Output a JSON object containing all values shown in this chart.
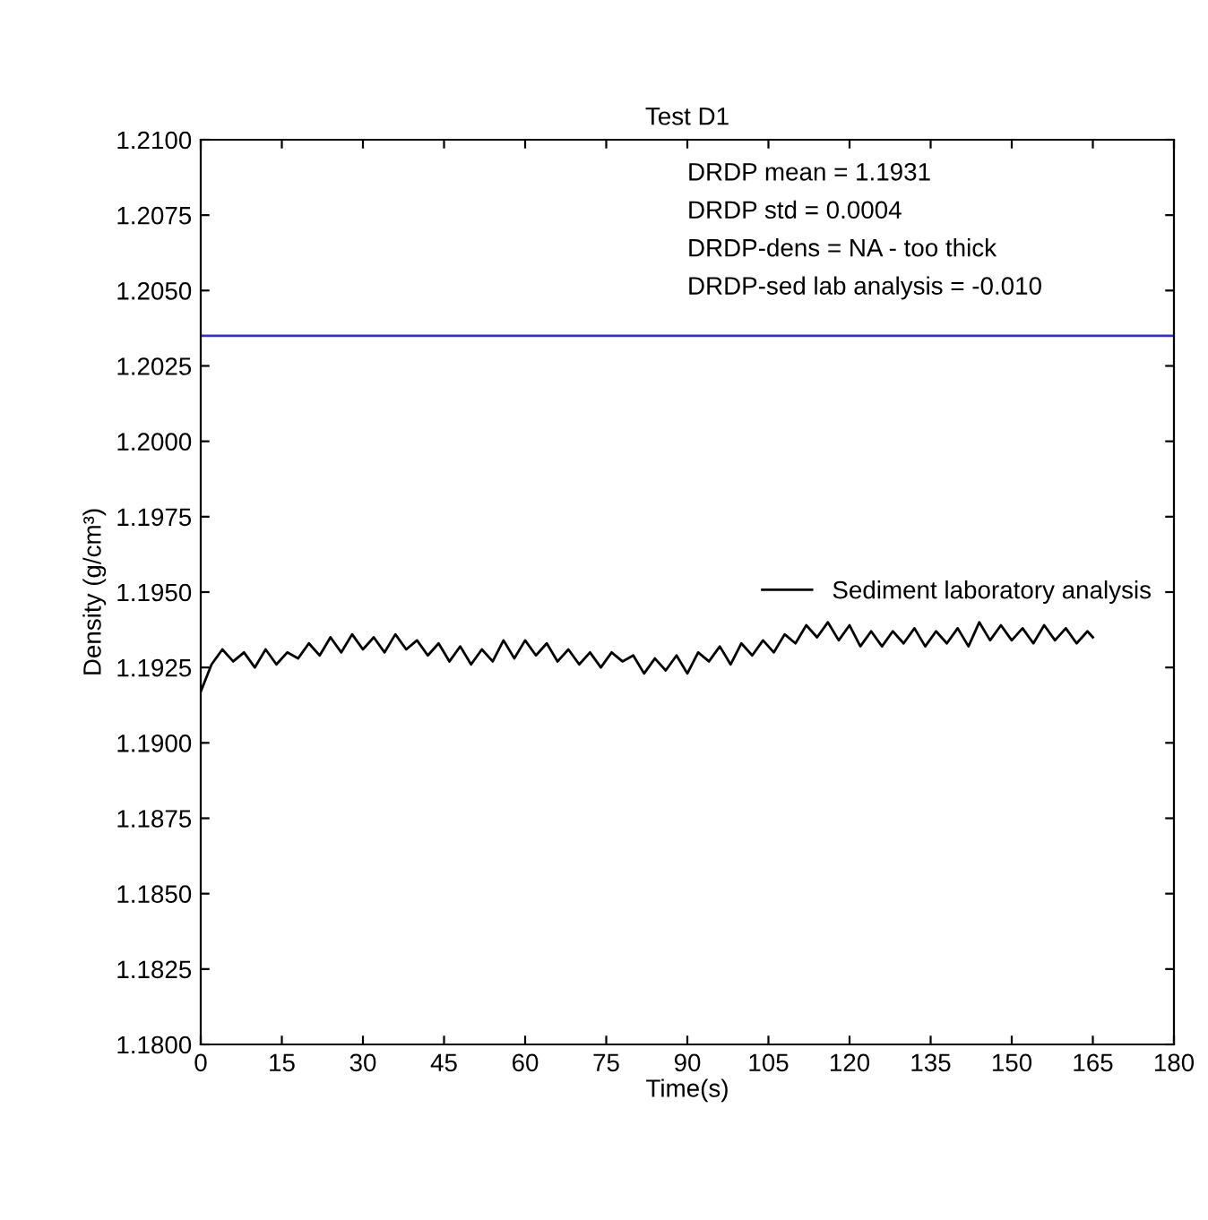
{
  "chart_data": {
    "type": "line",
    "title": "Test D1",
    "xlabel": "Time(s)",
    "ylabel": "Density (g/cm³)",
    "annotations": [
      "DRDP mean = 1.1931",
      "DRDP std = 0.0004",
      "DRDP-dens = NA - too thick",
      "DRDP-sed lab analysis = -0.010"
    ],
    "x": [
      0,
      2,
      4,
      6,
      8,
      10,
      12,
      14,
      16,
      18,
      20,
      22,
      24,
      26,
      28,
      30,
      32,
      34,
      36,
      38,
      40,
      42,
      44,
      46,
      48,
      50,
      52,
      54,
      56,
      58,
      60,
      62,
      64,
      66,
      68,
      70,
      72,
      74,
      76,
      78,
      80,
      82,
      84,
      86,
      88,
      90,
      92,
      94,
      96,
      98,
      100,
      102,
      104,
      106,
      108,
      110,
      112,
      114,
      116,
      118,
      120,
      122,
      124,
      126,
      128,
      130,
      132,
      134,
      136,
      138,
      140,
      142,
      144,
      146,
      148,
      150,
      152,
      154,
      156,
      158,
      160,
      162,
      164,
      165
    ],
    "series": [
      {
        "name": "Sediment laboratory analysis",
        "color": "#000000",
        "values": [
          1.1917,
          1.1926,
          1.1931,
          1.1927,
          1.193,
          1.1925,
          1.1931,
          1.1926,
          1.193,
          1.1928,
          1.1933,
          1.1929,
          1.1935,
          1.193,
          1.1936,
          1.1931,
          1.1935,
          1.193,
          1.1936,
          1.1931,
          1.1934,
          1.1929,
          1.1933,
          1.1927,
          1.1932,
          1.1926,
          1.1931,
          1.1927,
          1.1934,
          1.1928,
          1.1934,
          1.1929,
          1.1933,
          1.1927,
          1.1931,
          1.1926,
          1.193,
          1.1925,
          1.193,
          1.1927,
          1.1929,
          1.1923,
          1.1928,
          1.1924,
          1.1929,
          1.1923,
          1.193,
          1.1927,
          1.1932,
          1.1926,
          1.1933,
          1.1929,
          1.1934,
          1.193,
          1.1936,
          1.1933,
          1.1939,
          1.1935,
          1.194,
          1.1934,
          1.1939,
          1.1932,
          1.1937,
          1.1932,
          1.1937,
          1.1933,
          1.1938,
          1.1932,
          1.1937,
          1.1933,
          1.1938,
          1.1932,
          1.194,
          1.1934,
          1.1939,
          1.1934,
          1.1938,
          1.1933,
          1.1939,
          1.1934,
          1.1938,
          1.1933,
          1.1937,
          1.1935
        ]
      }
    ],
    "ref_lines": [
      {
        "axis": "y",
        "value": 1.2035,
        "color": "#3333cc",
        "line_style": "solid"
      }
    ],
    "xlim": [
      0,
      180
    ],
    "xticks": [
      0,
      15,
      30,
      45,
      60,
      75,
      90,
      105,
      120,
      135,
      150,
      165,
      180
    ],
    "ylim": [
      1.18,
      1.21
    ],
    "yticks": [
      {
        "value": 1.18,
        "label": "1.1800"
      },
      {
        "value": 1.1825,
        "label": "1.1825"
      },
      {
        "value": 1.185,
        "label": "1.1850"
      },
      {
        "value": 1.1875,
        "label": "1.1875"
      },
      {
        "value": 1.19,
        "label": "1.1900"
      },
      {
        "value": 1.1925,
        "label": "1.1925"
      },
      {
        "value": 1.195,
        "label": "1.1950"
      },
      {
        "value": 1.1975,
        "label": "1.1975"
      },
      {
        "value": 1.2,
        "label": "1.2000"
      },
      {
        "value": 1.2025,
        "label": "1.2025"
      },
      {
        "value": 1.205,
        "label": "1.2050"
      },
      {
        "value": 1.2075,
        "label": "1.2075"
      },
      {
        "value": 1.21,
        "label": "1.2100"
      }
    ],
    "grid": false,
    "legend": "center right"
  }
}
